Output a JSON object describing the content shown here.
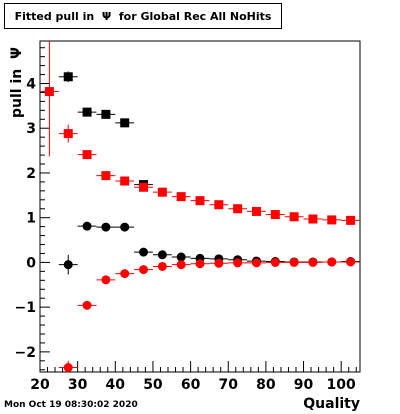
{
  "chart_data": {
    "type": "scatter",
    "title": "Fitted pull in  Ψ  for Global Rec All NoHits",
    "xlabel": "Quality",
    "ylabel": "pull in  Ψ",
    "xlim": [
      20,
      105
    ],
    "ylim": [
      -2.45,
      4.95
    ],
    "x_ticks": [
      20,
      30,
      40,
      50,
      60,
      70,
      80,
      90,
      100
    ],
    "y_ticks": [
      -2,
      -1,
      0,
      1,
      2,
      3,
      4
    ],
    "grid": false,
    "legend": "none",
    "series": [
      {
        "color": "#000000",
        "marker": "square",
        "points": [
          {
            "x": 27.5,
            "y": 4.15,
            "xerr": 2.5,
            "yerr": 0.12
          },
          {
            "x": 32.5,
            "y": 3.36,
            "xerr": 2.5,
            "yerr": 0.06
          },
          {
            "x": 37.5,
            "y": 3.31,
            "xerr": 2.5,
            "yerr": 0.05
          },
          {
            "x": 42.5,
            "y": 3.12,
            "xerr": 2.5,
            "yerr": 0.05
          },
          {
            "x": 47.5,
            "y": 1.74,
            "xerr": 2.5,
            "yerr": 0.03
          }
        ]
      },
      {
        "color": "#000000",
        "marker": "circle",
        "points": [
          {
            "x": 27.5,
            "y": -0.05,
            "xerr": 2.5,
            "yerr": 0.22
          },
          {
            "x": 32.5,
            "y": 0.81,
            "xerr": 2.5,
            "yerr": 0.05
          },
          {
            "x": 37.5,
            "y": 0.79,
            "xerr": 2.5,
            "yerr": 0.04
          },
          {
            "x": 42.5,
            "y": 0.79,
            "xerr": 2.5,
            "yerr": 0.04
          },
          {
            "x": 47.5,
            "y": 0.23,
            "xerr": 2.5,
            "yerr": 0.03
          },
          {
            "x": 52.5,
            "y": 0.17,
            "xerr": 2.5,
            "yerr": 0.02
          },
          {
            "x": 57.5,
            "y": 0.12,
            "xerr": 2.5,
            "yerr": 0.02
          },
          {
            "x": 62.5,
            "y": 0.09,
            "xerr": 2.5,
            "yerr": 0.02
          },
          {
            "x": 67.5,
            "y": 0.08,
            "xerr": 2.5,
            "yerr": 0.02
          },
          {
            "x": 72.5,
            "y": 0.06,
            "xerr": 2.5,
            "yerr": 0.02
          },
          {
            "x": 77.5,
            "y": 0.03,
            "xerr": 2.5,
            "yerr": 0.02
          },
          {
            "x": 82.5,
            "y": 0.02,
            "xerr": 2.5,
            "yerr": 0.02
          },
          {
            "x": 87.5,
            "y": 0.01,
            "xerr": 2.5,
            "yerr": 0.02
          },
          {
            "x": 92.5,
            "y": 0.01,
            "xerr": 2.5,
            "yerr": 0.02
          },
          {
            "x": 97.5,
            "y": 0.01,
            "xerr": 2.5,
            "yerr": 0.02
          },
          {
            "x": 102.5,
            "y": 0.02,
            "xerr": 2.5,
            "yerr": 0.02
          }
        ]
      },
      {
        "color": "#ff0000",
        "marker": "square",
        "points": [
          {
            "x": 22.5,
            "y": 3.82,
            "xerr": 2.5,
            "yerr": 1.45
          },
          {
            "x": 27.5,
            "y": 2.88,
            "xerr": 2.5,
            "yerr": 0.2
          },
          {
            "x": 32.5,
            "y": 2.41,
            "xerr": 2.5,
            "yerr": 0.07
          },
          {
            "x": 37.5,
            "y": 1.94,
            "xerr": 2.5,
            "yerr": 0.04
          },
          {
            "x": 42.5,
            "y": 1.82,
            "xerr": 2.5,
            "yerr": 0.03
          },
          {
            "x": 47.5,
            "y": 1.68,
            "xerr": 2.5,
            "yerr": 0.03
          },
          {
            "x": 52.5,
            "y": 1.57,
            "xerr": 2.5,
            "yerr": 0.03
          },
          {
            "x": 57.5,
            "y": 1.47,
            "xerr": 2.5,
            "yerr": 0.03
          },
          {
            "x": 62.5,
            "y": 1.38,
            "xerr": 2.5,
            "yerr": 0.03
          },
          {
            "x": 67.5,
            "y": 1.29,
            "xerr": 2.5,
            "yerr": 0.03
          },
          {
            "x": 72.5,
            "y": 1.2,
            "xerr": 2.5,
            "yerr": 0.03
          },
          {
            "x": 77.5,
            "y": 1.14,
            "xerr": 2.5,
            "yerr": 0.03
          },
          {
            "x": 82.5,
            "y": 1.07,
            "xerr": 2.5,
            "yerr": 0.03
          },
          {
            "x": 87.5,
            "y": 1.02,
            "xerr": 2.5,
            "yerr": 0.03
          },
          {
            "x": 92.5,
            "y": 0.97,
            "xerr": 2.5,
            "yerr": 0.03
          },
          {
            "x": 97.5,
            "y": 0.95,
            "xerr": 2.5,
            "yerr": 0.03
          },
          {
            "x": 102.5,
            "y": 0.94,
            "xerr": 2.5,
            "yerr": 0.03
          }
        ]
      },
      {
        "color": "#ff0000",
        "marker": "circle",
        "points": [
          {
            "x": 27.5,
            "y": -2.35,
            "xerr": 2.5,
            "yerr": 0.15
          },
          {
            "x": 32.5,
            "y": -0.96,
            "xerr": 2.5,
            "yerr": 0.05
          },
          {
            "x": 37.5,
            "y": -0.39,
            "xerr": 2.5,
            "yerr": 0.04
          },
          {
            "x": 42.5,
            "y": -0.25,
            "xerr": 2.5,
            "yerr": 0.03
          },
          {
            "x": 47.5,
            "y": -0.16,
            "xerr": 2.5,
            "yerr": 0.03
          },
          {
            "x": 52.5,
            "y": -0.09,
            "xerr": 2.5,
            "yerr": 0.02
          },
          {
            "x": 57.5,
            "y": -0.05,
            "xerr": 2.5,
            "yerr": 0.02
          },
          {
            "x": 62.5,
            "y": -0.03,
            "xerr": 2.5,
            "yerr": 0.02
          },
          {
            "x": 67.5,
            "y": -0.02,
            "xerr": 2.5,
            "yerr": 0.02
          },
          {
            "x": 72.5,
            "y": -0.01,
            "xerr": 2.5,
            "yerr": 0.02
          },
          {
            "x": 77.5,
            "y": -0.01,
            "xerr": 2.5,
            "yerr": 0.02
          },
          {
            "x": 82.5,
            "y": 0.0,
            "xerr": 2.5,
            "yerr": 0.02
          },
          {
            "x": 87.5,
            "y": 0.0,
            "xerr": 2.5,
            "yerr": 0.02
          },
          {
            "x": 92.5,
            "y": 0.0,
            "xerr": 2.5,
            "yerr": 0.02
          },
          {
            "x": 97.5,
            "y": 0.01,
            "xerr": 2.5,
            "yerr": 0.02
          },
          {
            "x": 102.5,
            "y": 0.01,
            "xerr": 2.5,
            "yerr": 0.02
          }
        ]
      }
    ]
  },
  "footer": {
    "timestamp": "Mon Oct 19 08:30:02 2020"
  }
}
